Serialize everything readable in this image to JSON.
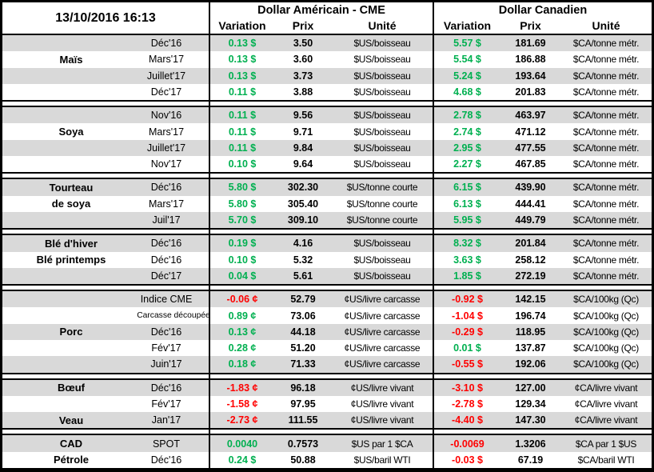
{
  "chart_data": {
    "type": "table",
    "header": {
      "date": "13/10/2016 16:13",
      "us_title": "Dollar Américain - CME",
      "ca_title": "Dollar Canadien",
      "col_variation": "Variation",
      "col_prix": "Prix",
      "col_unite": "Unité"
    },
    "colors": {
      "positive": "#00B050",
      "negative": "#FF0000",
      "stripe": "#D9D9D9"
    },
    "groups": [
      {
        "name": "mais",
        "rows": [
          {
            "label": "",
            "term": "Déc'16",
            "us_var": "0.13 $",
            "us_prix": "3.50",
            "us_unit": "$US/boisseau",
            "ca_var": "5.57 $",
            "ca_prix": "181.69",
            "ca_unit": "$CA/tonne métr."
          },
          {
            "label": "Maïs",
            "term": "Mars'17",
            "us_var": "0.13 $",
            "us_prix": "3.60",
            "us_unit": "$US/boisseau",
            "ca_var": "5.54 $",
            "ca_prix": "186.88",
            "ca_unit": "$CA/tonne métr."
          },
          {
            "label": "",
            "term": "Juillet'17",
            "us_var": "0.13 $",
            "us_prix": "3.73",
            "us_unit": "$US/boisseau",
            "ca_var": "5.24 $",
            "ca_prix": "193.64",
            "ca_unit": "$CA/tonne métr."
          },
          {
            "label": "",
            "term": "Déc'17",
            "us_var": "0.11 $",
            "us_prix": "3.88",
            "us_unit": "$US/boisseau",
            "ca_var": "4.68 $",
            "ca_prix": "201.83",
            "ca_unit": "$CA/tonne métr."
          }
        ]
      },
      {
        "name": "soya",
        "rows": [
          {
            "label": "",
            "term": "Nov'16",
            "us_var": "0.11 $",
            "us_prix": "9.56",
            "us_unit": "$US/boisseau",
            "ca_var": "2.78 $",
            "ca_prix": "463.97",
            "ca_unit": "$CA/tonne métr."
          },
          {
            "label": "Soya",
            "term": "Mars'17",
            "us_var": "0.11 $",
            "us_prix": "9.71",
            "us_unit": "$US/boisseau",
            "ca_var": "2.74 $",
            "ca_prix": "471.12",
            "ca_unit": "$CA/tonne métr."
          },
          {
            "label": "",
            "term": "Juillet'17",
            "us_var": "0.11 $",
            "us_prix": "9.84",
            "us_unit": "$US/boisseau",
            "ca_var": "2.95 $",
            "ca_prix": "477.55",
            "ca_unit": "$CA/tonne métr."
          },
          {
            "label": "",
            "term": "Nov'17",
            "us_var": "0.10 $",
            "us_prix": "9.64",
            "us_unit": "$US/boisseau",
            "ca_var": "2.27 $",
            "ca_prix": "467.85",
            "ca_unit": "$CA/tonne métr."
          }
        ]
      },
      {
        "name": "tourteau-de-soya",
        "rows": [
          {
            "label": "Tourteau",
            "term": "Déc'16",
            "us_var": "5.80 $",
            "us_prix": "302.30",
            "us_unit": "$US/tonne courte",
            "ca_var": "6.15 $",
            "ca_prix": "439.90",
            "ca_unit": "$CA/tonne métr."
          },
          {
            "label": "de soya",
            "term": "Mars'17",
            "us_var": "5.80 $",
            "us_prix": "305.40",
            "us_unit": "$US/tonne courte",
            "ca_var": "6.13 $",
            "ca_prix": "444.41",
            "ca_unit": "$CA/tonne métr."
          },
          {
            "label": "",
            "term": "Juil'17",
            "us_var": "5.70 $",
            "us_prix": "309.10",
            "us_unit": "$US/tonne courte",
            "ca_var": "5.95 $",
            "ca_prix": "449.79",
            "ca_unit": "$CA/tonne métr."
          }
        ]
      },
      {
        "name": "ble",
        "rows": [
          {
            "label": "Blé d'hiver",
            "term": "Déc'16",
            "us_var": "0.19 $",
            "us_prix": "4.16",
            "us_unit": "$US/boisseau",
            "ca_var": "8.32 $",
            "ca_prix": "201.84",
            "ca_unit": "$CA/tonne métr."
          },
          {
            "label": "Blé printemps",
            "term": "Déc'16",
            "us_var": "0.10 $",
            "us_prix": "5.32",
            "us_unit": "$US/boisseau",
            "ca_var": "3.63 $",
            "ca_prix": "258.12",
            "ca_unit": "$CA/tonne métr."
          },
          {
            "label": "",
            "term": "Déc'17",
            "us_var": "0.04 $",
            "us_prix": "5.61",
            "us_unit": "$US/boisseau",
            "ca_var": "1.85 $",
            "ca_prix": "272.19",
            "ca_unit": "$CA/tonne métr."
          }
        ]
      },
      {
        "name": "porc",
        "rows": [
          {
            "label": "",
            "term": "Indice CME",
            "us_var": "-0.06 ¢",
            "us_prix": "52.79",
            "us_unit": "¢US/livre carcasse",
            "ca_var": "-0.92 $",
            "ca_prix": "142.15",
            "ca_unit": "$CA/100kg (Qc)"
          },
          {
            "label": "",
            "term": "Carcasse découpée",
            "small": true,
            "us_var": "0.89 ¢",
            "us_prix": "73.06",
            "us_unit": "¢US/livre carcasse",
            "ca_var": "-1.04 $",
            "ca_prix": "196.74",
            "ca_unit": "$CA/100kg (Qc)"
          },
          {
            "label": "Porc",
            "term": "Déc'16",
            "us_var": "0.13 ¢",
            "us_prix": "44.18",
            "us_unit": "¢US/livre carcasse",
            "ca_var": "-0.29 $",
            "ca_prix": "118.95",
            "ca_unit": "$CA/100kg (Qc)"
          },
          {
            "label": "",
            "term": "Fév'17",
            "us_var": "0.28 ¢",
            "us_prix": "51.20",
            "us_unit": "¢US/livre carcasse",
            "ca_var": "0.01 $",
            "ca_prix": "137.87",
            "ca_unit": "$CA/100kg (Qc)"
          },
          {
            "label": "",
            "term": "Juin'17",
            "us_var": "0.18 ¢",
            "us_prix": "71.33",
            "us_unit": "¢US/livre carcasse",
            "ca_var": "-0.55 $",
            "ca_prix": "192.06",
            "ca_unit": "$CA/100kg (Qc)"
          }
        ]
      },
      {
        "name": "boeuf-veau",
        "rows": [
          {
            "label": "Bœuf",
            "term": "Déc'16",
            "us_var": "-1.83 ¢",
            "us_prix": "96.18",
            "us_unit": "¢US/livre vivant",
            "ca_var": "-3.10 $",
            "ca_prix": "127.00",
            "ca_unit": "¢CA/livre vivant"
          },
          {
            "label": "",
            "term": "Fév'17",
            "us_var": "-1.58 ¢",
            "us_prix": "97.95",
            "us_unit": "¢US/livre vivant",
            "ca_var": "-2.78 $",
            "ca_prix": "129.34",
            "ca_unit": "¢CA/livre vivant"
          },
          {
            "label": "Veau",
            "term": "Jan'17",
            "us_var": "-2.73 ¢",
            "us_prix": "111.55",
            "us_unit": "¢US/livre vivant",
            "ca_var": "-4.40 $",
            "ca_prix": "147.30",
            "ca_unit": "¢CA/livre vivant"
          }
        ]
      },
      {
        "name": "cad-petrole",
        "rows": [
          {
            "label": "CAD",
            "term": "SPOT",
            "us_var": "0.0040",
            "us_prix": "0.7573",
            "us_unit": "$US par 1 $CA",
            "ca_var": "-0.0069",
            "ca_prix": "1.3206",
            "ca_unit": "$CA par 1 $US"
          },
          {
            "label": "Pétrole",
            "term": "Déc'16",
            "us_var": "0.24 $",
            "us_prix": "50.88",
            "us_unit": "$US/baril WTI",
            "ca_var": "-0.03 $",
            "ca_prix": "67.19",
            "ca_unit": "$CA/baril WTI"
          }
        ]
      }
    ]
  }
}
